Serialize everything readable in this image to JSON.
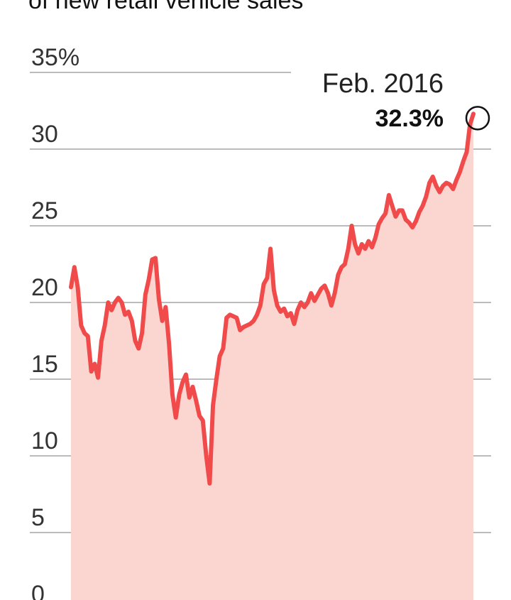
{
  "chart_data": {
    "type": "area",
    "title": "of new retail vehicle sales",
    "xlabel": "",
    "ylabel": "",
    "ylim": [
      0,
      35
    ],
    "yticks": [
      {
        "value": 35,
        "label": "35%"
      },
      {
        "value": 30,
        "label": "30"
      },
      {
        "value": 25,
        "label": "25"
      },
      {
        "value": 20,
        "label": "20"
      },
      {
        "value": 15,
        "label": "15"
      },
      {
        "value": 10,
        "label": "10"
      },
      {
        "value": 5,
        "label": "5"
      },
      {
        "value": 0,
        "label": "0"
      }
    ],
    "grid": true,
    "annotation": {
      "label": "Feb. 2016",
      "value_label": "32.3%",
      "value": 32.3
    },
    "colors": {
      "line": "#f04a4a",
      "fill": "#fbd6d0",
      "grid": "#bbbbbb",
      "marker": "#111111"
    },
    "values": [
      21.0,
      22.3,
      21.0,
      18.5,
      18.0,
      17.8,
      15.5,
      16.0,
      15.1,
      17.5,
      18.5,
      20.0,
      19.5,
      20.0,
      20.3,
      20.0,
      19.2,
      19.4,
      18.8,
      17.5,
      17.0,
      18.0,
      20.5,
      21.5,
      22.8,
      22.9,
      20.2,
      18.8,
      19.7,
      17.3,
      14.0,
      12.5,
      14.0,
      14.8,
      15.3,
      13.8,
      14.5,
      13.6,
      12.6,
      12.3,
      10.0,
      8.2,
      13.3,
      15.0,
      16.5,
      17.0,
      19.0,
      19.2,
      19.1,
      19.0,
      18.2,
      18.4,
      18.5,
      18.6,
      18.8,
      19.2,
      19.8,
      21.2,
      21.6,
      23.5,
      20.8,
      19.8,
      19.4,
      19.6,
      19.1,
      19.3,
      18.6,
      19.5,
      20.0,
      19.7,
      20.0,
      20.6,
      20.1,
      20.5,
      20.9,
      21.1,
      20.6,
      19.8,
      20.6,
      21.8,
      22.3,
      22.5,
      23.5,
      25.0,
      23.8,
      23.2,
      23.8,
      23.5,
      24.0,
      23.6,
      24.2,
      25.1,
      25.5,
      25.8,
      27.0,
      26.3,
      25.6,
      26.0,
      26.0,
      25.4,
      25.2,
      24.9,
      25.3,
      25.9,
      26.3,
      26.9,
      27.8,
      28.2,
      27.6,
      27.2,
      27.6,
      27.8,
      27.7,
      27.4,
      28.0,
      28.5,
      29.2,
      29.8,
      31.6,
      32.3
    ]
  }
}
